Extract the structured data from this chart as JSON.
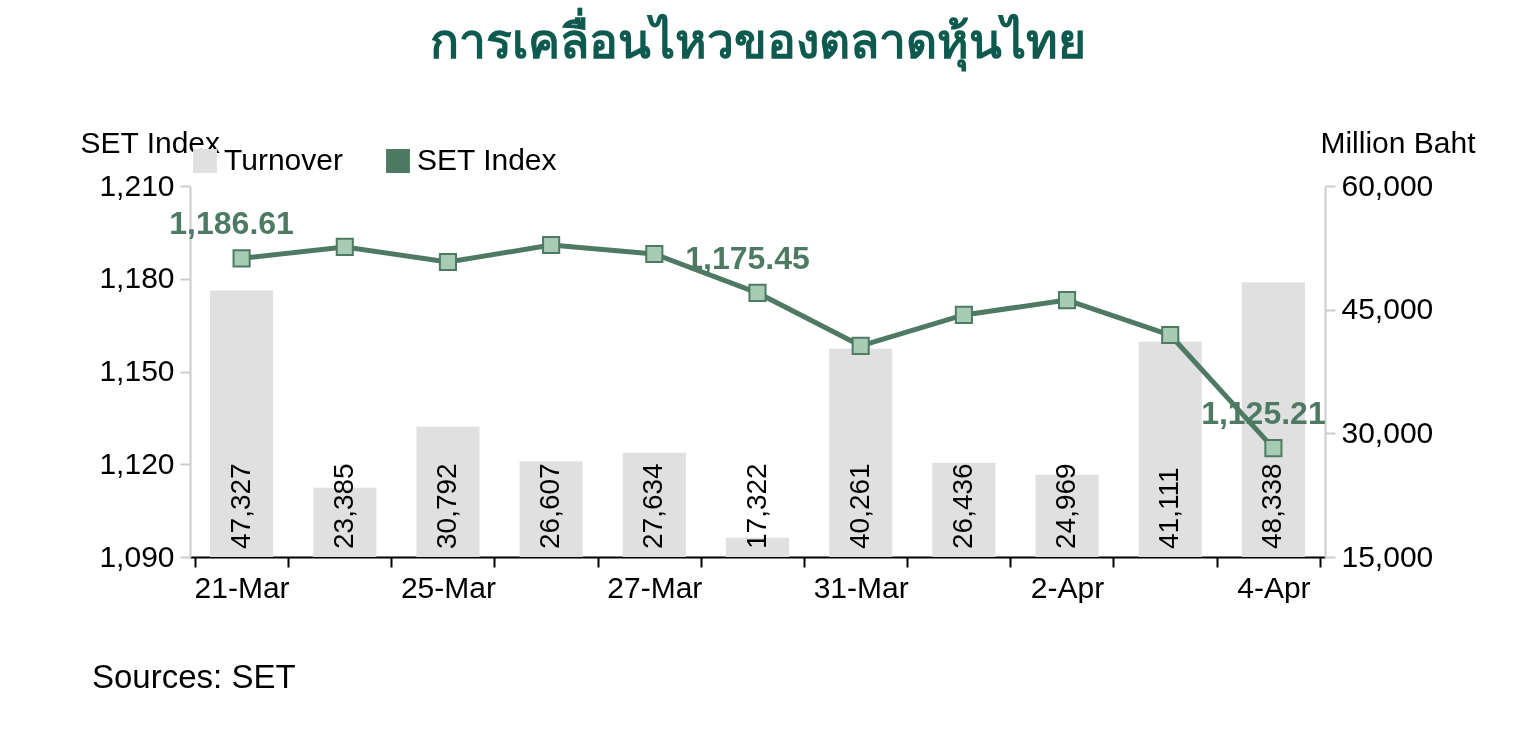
{
  "chart_data": {
    "type": "bar",
    "title": "การเคลื่อนไหวของตลาดหุ้นไทย",
    "ylabel": "SET Index",
    "y2label": "Million Baht",
    "categories": [
      "21-Mar",
      null,
      "25-Mar",
      null,
      "27-Mar",
      null,
      "31-Mar",
      null,
      "2-Apr",
      null,
      "4-Apr"
    ],
    "series": [
      {
        "name": "Turnover",
        "axis": "y2",
        "color": "#e0e0e0",
        "values": [
          47327,
          23385,
          30792,
          26607,
          27634,
          17322,
          40261,
          26436,
          24969,
          41111,
          48338
        ],
        "value_labels": [
          "47,327",
          "23,385",
          "30,792",
          "26,607",
          "27,634",
          "17,322",
          "40,261",
          "26,436",
          "24,969",
          "41,111",
          "48,338"
        ]
      },
      {
        "name": "SET Index",
        "type": "line",
        "color": "#4e7a63",
        "values": [
          1186.61,
          1190.3,
          1185.4,
          1190.9,
          1188.0,
          1175.45,
          1158.3,
          1168.3,
          1173.1,
          1161.8,
          1125.21
        ],
        "value_labels": [
          "1,186.61",
          null,
          null,
          null,
          null,
          "1,175.45",
          null,
          null,
          null,
          null,
          "1,125.21"
        ]
      }
    ],
    "ylim": [
      1090,
      1210
    ],
    "yticks": [
      {
        "value": 1090,
        "label": "1,090"
      },
      {
        "value": 1120,
        "label": "1,120"
      },
      {
        "value": 1150,
        "label": "1,150"
      },
      {
        "value": 1180,
        "label": "1,180"
      },
      {
        "value": 1210,
        "label": "1,210"
      }
    ],
    "y2lim": [
      15000,
      60000
    ],
    "y2ticks": [
      {
        "value": 15000,
        "label": "15,000"
      },
      {
        "value": 30000,
        "label": "30,000"
      },
      {
        "value": 45000,
        "label": "45,000"
      },
      {
        "value": 60000,
        "label": "60,000"
      }
    ],
    "marker": "square",
    "legend": "top",
    "grid": false,
    "annotations": [
      "Sources: SET"
    ]
  }
}
